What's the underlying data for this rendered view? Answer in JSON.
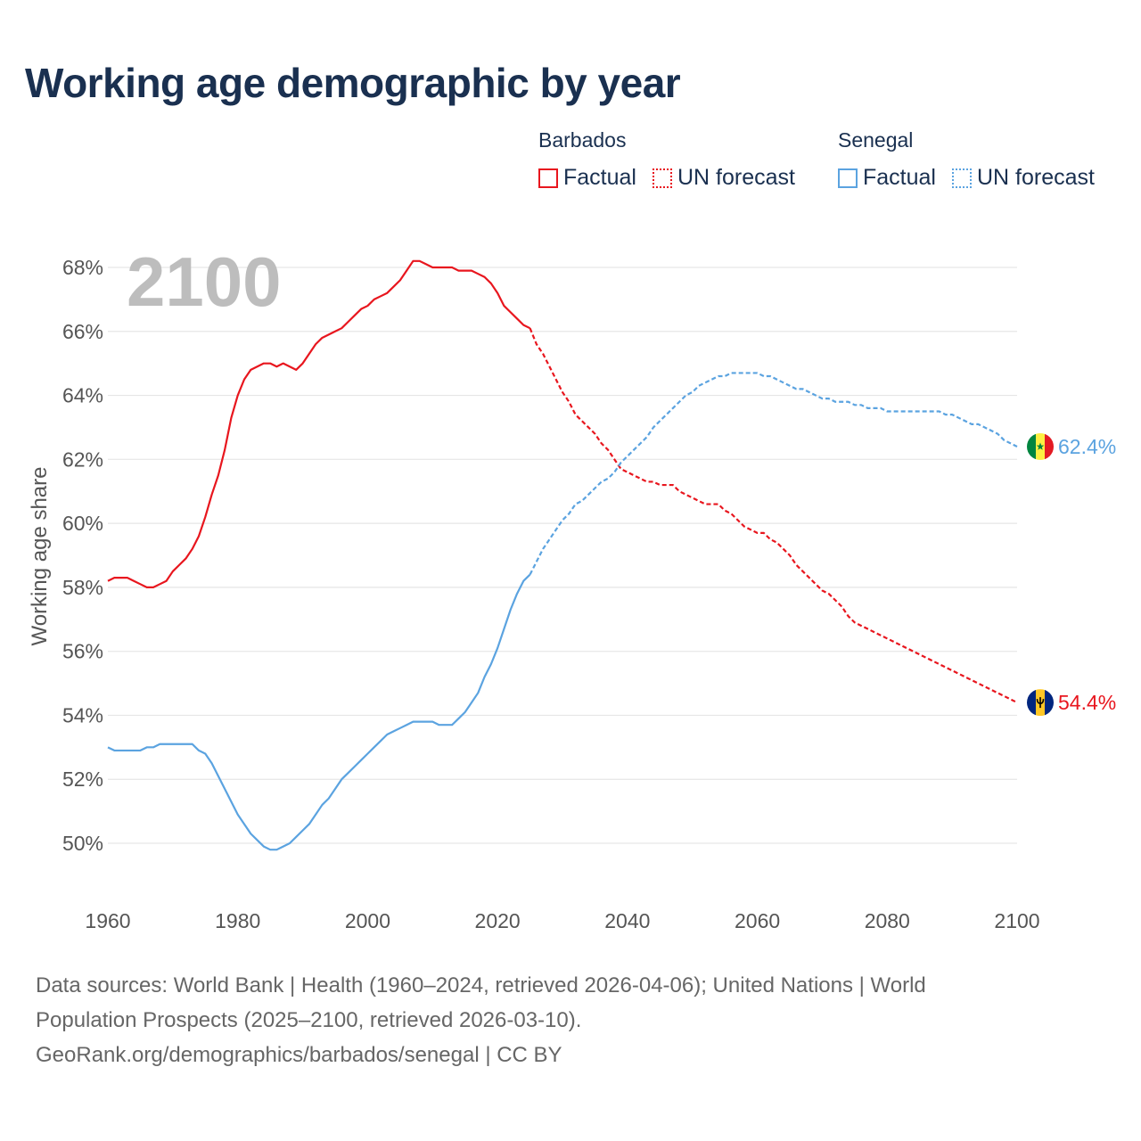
{
  "title": "Working age demographic by year",
  "year_label": "2100",
  "legend": {
    "groups": [
      {
        "country": "Barbados",
        "factual": "Factual",
        "forecast": "UN forecast",
        "color": "#e8161e"
      },
      {
        "country": "Senegal",
        "factual": "Factual",
        "forecast": "UN forecast",
        "color": "#5ba3e0"
      }
    ]
  },
  "end_labels": {
    "barbados": "54.4%",
    "senegal": "62.4%"
  },
  "footer": {
    "line1": "Data sources: World Bank | Health (1960–2024, retrieved 2026-04-06); United Nations | World",
    "line2": "Population Prospects (2025–2100, retrieved 2026-03-10).",
    "line3": "GeoRank.org/demographics/barbados/senegal | CC BY"
  },
  "chart_data": {
    "type": "line",
    "title": "Working age demographic by year",
    "xlabel": "",
    "ylabel": "Working age share",
    "xlim": [
      1960,
      2100
    ],
    "ylim": [
      48,
      69
    ],
    "x_ticks": [
      1960,
      1980,
      2000,
      2020,
      2040,
      2060,
      2080,
      2100
    ],
    "y_ticks": [
      50,
      52,
      54,
      56,
      58,
      60,
      62,
      64,
      66,
      68
    ],
    "y_tick_format": "{v}%",
    "grid": true,
    "forecast_start": 2025,
    "series": [
      {
        "name": "Barbados",
        "key": "barbados",
        "color": "#e8161e",
        "points": [
          [
            1960,
            58.2
          ],
          [
            1961,
            58.3
          ],
          [
            1962,
            58.3
          ],
          [
            1963,
            58.3
          ],
          [
            1964,
            58.2
          ],
          [
            1965,
            58.1
          ],
          [
            1966,
            58.0
          ],
          [
            1967,
            58.0
          ],
          [
            1968,
            58.1
          ],
          [
            1969,
            58.2
          ],
          [
            1970,
            58.5
          ],
          [
            1971,
            58.7
          ],
          [
            1972,
            58.9
          ],
          [
            1973,
            59.2
          ],
          [
            1974,
            59.6
          ],
          [
            1975,
            60.2
          ],
          [
            1976,
            60.9
          ],
          [
            1977,
            61.5
          ],
          [
            1978,
            62.3
          ],
          [
            1979,
            63.3
          ],
          [
            1980,
            64.0
          ],
          [
            1981,
            64.5
          ],
          [
            1982,
            64.8
          ],
          [
            1983,
            64.9
          ],
          [
            1984,
            65.0
          ],
          [
            1985,
            65.0
          ],
          [
            1986,
            64.9
          ],
          [
            1987,
            65.0
          ],
          [
            1988,
            64.9
          ],
          [
            1989,
            64.8
          ],
          [
            1990,
            65.0
          ],
          [
            1991,
            65.3
          ],
          [
            1992,
            65.6
          ],
          [
            1993,
            65.8
          ],
          [
            1994,
            65.9
          ],
          [
            1995,
            66.0
          ],
          [
            1996,
            66.1
          ],
          [
            1997,
            66.3
          ],
          [
            1998,
            66.5
          ],
          [
            1999,
            66.7
          ],
          [
            2000,
            66.8
          ],
          [
            2001,
            67.0
          ],
          [
            2002,
            67.1
          ],
          [
            2003,
            67.2
          ],
          [
            2004,
            67.4
          ],
          [
            2005,
            67.6
          ],
          [
            2006,
            67.9
          ],
          [
            2007,
            68.2
          ],
          [
            2008,
            68.2
          ],
          [
            2009,
            68.1
          ],
          [
            2010,
            68.0
          ],
          [
            2011,
            68.0
          ],
          [
            2012,
            68.0
          ],
          [
            2013,
            68.0
          ],
          [
            2014,
            67.9
          ],
          [
            2015,
            67.9
          ],
          [
            2016,
            67.9
          ],
          [
            2017,
            67.8
          ],
          [
            2018,
            67.7
          ],
          [
            2019,
            67.5
          ],
          [
            2020,
            67.2
          ],
          [
            2021,
            66.8
          ],
          [
            2022,
            66.6
          ],
          [
            2023,
            66.4
          ],
          [
            2024,
            66.2
          ],
          [
            2025,
            66.1
          ],
          [
            2026,
            65.6
          ],
          [
            2027,
            65.3
          ],
          [
            2028,
            64.9
          ],
          [
            2029,
            64.5
          ],
          [
            2030,
            64.1
          ],
          [
            2031,
            63.8
          ],
          [
            2032,
            63.4
          ],
          [
            2033,
            63.2
          ],
          [
            2034,
            63.0
          ],
          [
            2035,
            62.8
          ],
          [
            2036,
            62.5
          ],
          [
            2037,
            62.3
          ],
          [
            2038,
            62.0
          ],
          [
            2039,
            61.7
          ],
          [
            2040,
            61.6
          ],
          [
            2041,
            61.5
          ],
          [
            2042,
            61.4
          ],
          [
            2043,
            61.3
          ],
          [
            2044,
            61.3
          ],
          [
            2045,
            61.2
          ],
          [
            2046,
            61.2
          ],
          [
            2047,
            61.2
          ],
          [
            2048,
            61.0
          ],
          [
            2049,
            60.9
          ],
          [
            2050,
            60.8
          ],
          [
            2051,
            60.7
          ],
          [
            2052,
            60.6
          ],
          [
            2053,
            60.6
          ],
          [
            2054,
            60.6
          ],
          [
            2055,
            60.4
          ],
          [
            2056,
            60.3
          ],
          [
            2057,
            60.1
          ],
          [
            2058,
            59.9
          ],
          [
            2059,
            59.8
          ],
          [
            2060,
            59.7
          ],
          [
            2061,
            59.7
          ],
          [
            2062,
            59.5
          ],
          [
            2063,
            59.4
          ],
          [
            2064,
            59.2
          ],
          [
            2065,
            59.0
          ],
          [
            2066,
            58.7
          ],
          [
            2067,
            58.5
          ],
          [
            2068,
            58.3
          ],
          [
            2069,
            58.1
          ],
          [
            2070,
            57.9
          ],
          [
            2071,
            57.8
          ],
          [
            2072,
            57.6
          ],
          [
            2073,
            57.4
          ],
          [
            2074,
            57.1
          ],
          [
            2075,
            56.9
          ],
          [
            2076,
            56.8
          ],
          [
            2077,
            56.7
          ],
          [
            2078,
            56.6
          ],
          [
            2079,
            56.5
          ],
          [
            2080,
            56.4
          ],
          [
            2081,
            56.3
          ],
          [
            2082,
            56.2
          ],
          [
            2083,
            56.1
          ],
          [
            2084,
            56.0
          ],
          [
            2085,
            55.9
          ],
          [
            2086,
            55.8
          ],
          [
            2087,
            55.7
          ],
          [
            2088,
            55.6
          ],
          [
            2089,
            55.5
          ],
          [
            2090,
            55.4
          ],
          [
            2091,
            55.3
          ],
          [
            2092,
            55.2
          ],
          [
            2093,
            55.1
          ],
          [
            2094,
            55.0
          ],
          [
            2095,
            54.9
          ],
          [
            2096,
            54.8
          ],
          [
            2097,
            54.7
          ],
          [
            2098,
            54.6
          ],
          [
            2099,
            54.5
          ],
          [
            2100,
            54.4
          ]
        ]
      },
      {
        "name": "Senegal",
        "key": "senegal",
        "color": "#5ba3e0",
        "points": [
          [
            1960,
            53.0
          ],
          [
            1961,
            52.9
          ],
          [
            1962,
            52.9
          ],
          [
            1963,
            52.9
          ],
          [
            1964,
            52.9
          ],
          [
            1965,
            52.9
          ],
          [
            1966,
            53.0
          ],
          [
            1967,
            53.0
          ],
          [
            1968,
            53.1
          ],
          [
            1969,
            53.1
          ],
          [
            1970,
            53.1
          ],
          [
            1971,
            53.1
          ],
          [
            1972,
            53.1
          ],
          [
            1973,
            53.1
          ],
          [
            1974,
            52.9
          ],
          [
            1975,
            52.8
          ],
          [
            1976,
            52.5
          ],
          [
            1977,
            52.1
          ],
          [
            1978,
            51.7
          ],
          [
            1979,
            51.3
          ],
          [
            1980,
            50.9
          ],
          [
            1981,
            50.6
          ],
          [
            1982,
            50.3
          ],
          [
            1983,
            50.1
          ],
          [
            1984,
            49.9
          ],
          [
            1985,
            49.8
          ],
          [
            1986,
            49.8
          ],
          [
            1987,
            49.9
          ],
          [
            1988,
            50.0
          ],
          [
            1989,
            50.2
          ],
          [
            1990,
            50.4
          ],
          [
            1991,
            50.6
          ],
          [
            1992,
            50.9
          ],
          [
            1993,
            51.2
          ],
          [
            1994,
            51.4
          ],
          [
            1995,
            51.7
          ],
          [
            1996,
            52.0
          ],
          [
            1997,
            52.2
          ],
          [
            1998,
            52.4
          ],
          [
            1999,
            52.6
          ],
          [
            2000,
            52.8
          ],
          [
            2001,
            53.0
          ],
          [
            2002,
            53.2
          ],
          [
            2003,
            53.4
          ],
          [
            2004,
            53.5
          ],
          [
            2005,
            53.6
          ],
          [
            2006,
            53.7
          ],
          [
            2007,
            53.8
          ],
          [
            2008,
            53.8
          ],
          [
            2009,
            53.8
          ],
          [
            2010,
            53.8
          ],
          [
            2011,
            53.7
          ],
          [
            2012,
            53.7
          ],
          [
            2013,
            53.7
          ],
          [
            2014,
            53.9
          ],
          [
            2015,
            54.1
          ],
          [
            2016,
            54.4
          ],
          [
            2017,
            54.7
          ],
          [
            2018,
            55.2
          ],
          [
            2019,
            55.6
          ],
          [
            2020,
            56.1
          ],
          [
            2021,
            56.7
          ],
          [
            2022,
            57.3
          ],
          [
            2023,
            57.8
          ],
          [
            2024,
            58.2
          ],
          [
            2025,
            58.4
          ],
          [
            2026,
            58.8
          ],
          [
            2027,
            59.2
          ],
          [
            2028,
            59.5
          ],
          [
            2029,
            59.8
          ],
          [
            2030,
            60.1
          ],
          [
            2031,
            60.3
          ],
          [
            2032,
            60.6
          ],
          [
            2033,
            60.7
          ],
          [
            2034,
            60.9
          ],
          [
            2035,
            61.1
          ],
          [
            2036,
            61.3
          ],
          [
            2037,
            61.4
          ],
          [
            2038,
            61.6
          ],
          [
            2039,
            61.9
          ],
          [
            2040,
            62.1
          ],
          [
            2041,
            62.3
          ],
          [
            2042,
            62.5
          ],
          [
            2043,
            62.7
          ],
          [
            2044,
            63.0
          ],
          [
            2045,
            63.2
          ],
          [
            2046,
            63.4
          ],
          [
            2047,
            63.6
          ],
          [
            2048,
            63.8
          ],
          [
            2049,
            64.0
          ],
          [
            2050,
            64.1
          ],
          [
            2051,
            64.3
          ],
          [
            2052,
            64.4
          ],
          [
            2053,
            64.5
          ],
          [
            2054,
            64.6
          ],
          [
            2055,
            64.6
          ],
          [
            2056,
            64.7
          ],
          [
            2057,
            64.7
          ],
          [
            2058,
            64.7
          ],
          [
            2059,
            64.7
          ],
          [
            2060,
            64.7
          ],
          [
            2061,
            64.6
          ],
          [
            2062,
            64.6
          ],
          [
            2063,
            64.5
          ],
          [
            2064,
            64.4
          ],
          [
            2065,
            64.3
          ],
          [
            2066,
            64.2
          ],
          [
            2067,
            64.2
          ],
          [
            2068,
            64.1
          ],
          [
            2069,
            64.0
          ],
          [
            2070,
            63.9
          ],
          [
            2071,
            63.9
          ],
          [
            2072,
            63.8
          ],
          [
            2073,
            63.8
          ],
          [
            2074,
            63.8
          ],
          [
            2075,
            63.7
          ],
          [
            2076,
            63.7
          ],
          [
            2077,
            63.6
          ],
          [
            2078,
            63.6
          ],
          [
            2079,
            63.6
          ],
          [
            2080,
            63.5
          ],
          [
            2081,
            63.5
          ],
          [
            2082,
            63.5
          ],
          [
            2083,
            63.5
          ],
          [
            2084,
            63.5
          ],
          [
            2085,
            63.5
          ],
          [
            2086,
            63.5
          ],
          [
            2087,
            63.5
          ],
          [
            2088,
            63.5
          ],
          [
            2089,
            63.4
          ],
          [
            2090,
            63.4
          ],
          [
            2091,
            63.3
          ],
          [
            2092,
            63.2
          ],
          [
            2093,
            63.1
          ],
          [
            2094,
            63.1
          ],
          [
            2095,
            63.0
          ],
          [
            2096,
            62.9
          ],
          [
            2097,
            62.8
          ],
          [
            2098,
            62.6
          ],
          [
            2099,
            62.5
          ],
          [
            2100,
            62.4
          ]
        ]
      }
    ]
  }
}
